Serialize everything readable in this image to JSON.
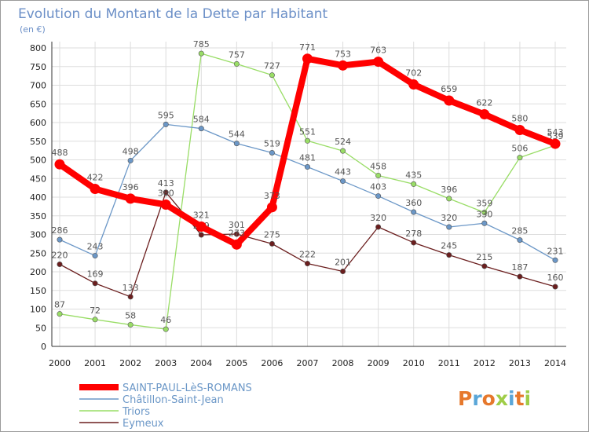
{
  "colors": {
    "saint_paul": "#ff0000",
    "chatillon": "#6b97c7",
    "triors": "#99dd66",
    "eymeux": "#6b1e1e",
    "grid": "#dddddd",
    "title": "#6b8fc7"
  },
  "logo": {
    "text": "Proxiti"
  },
  "chart_data": {
    "type": "line",
    "title": "Evolution du Montant de la Dette par Habitant",
    "subtitle": "(en €)",
    "xlabel": "",
    "ylabel": "",
    "ylim": [
      0,
      800
    ],
    "ytick_step": 50,
    "grid": true,
    "legend_position": "bottom-left",
    "x": [
      "2000",
      "2001",
      "2002",
      "2003",
      "2004",
      "2005",
      "2006",
      "2007",
      "2008",
      "2009",
      "2010",
      "2011",
      "2012",
      "2013",
      "2014"
    ],
    "series": [
      {
        "name": "SAINT-PAUL-LèS-ROMANS",
        "color_key": "saint_paul",
        "values": [
          488,
          422,
          396,
          380,
          321,
          273,
          373,
          771,
          753,
          763,
          702,
          659,
          622,
          580,
          543
        ],
        "labels": [
          "488",
          "422",
          "396",
          "380",
          "321",
          "273",
          "373",
          "771",
          "753",
          "763",
          "702",
          "659",
          "622",
          "580",
          "543"
        ]
      },
      {
        "name": "Châtillon-Saint-Jean",
        "color_key": "chatillon",
        "values": [
          286,
          243,
          498,
          595,
          584,
          544,
          519,
          481,
          443,
          403,
          360,
          320,
          330,
          285,
          231
        ],
        "labels": [
          "286",
          "243",
          "498",
          "595",
          "584",
          "544",
          "519",
          "481",
          "443",
          "403",
          "360",
          "320",
          "330",
          "285",
          "231"
        ]
      },
      {
        "name": "Triors",
        "color_key": "triors",
        "values": [
          87,
          72,
          58,
          46,
          785,
          757,
          727,
          551,
          524,
          458,
          435,
          396,
          359,
          506,
          539
        ],
        "labels": [
          "87",
          "72",
          "58",
          "46",
          "785",
          "757",
          "727",
          "551",
          "524",
          "458",
          "435",
          "396",
          "359",
          "506",
          "539"
        ]
      },
      {
        "name": "Eymeux",
        "color_key": "eymeux",
        "values": [
          220,
          169,
          133,
          413,
          299,
          301,
          275,
          222,
          201,
          320,
          278,
          245,
          215,
          187,
          160
        ],
        "labels": [
          "220",
          "169",
          "133",
          "413",
          "299",
          "301",
          "275",
          "222",
          "201",
          "320",
          "278",
          "245",
          "215",
          "187",
          "160"
        ]
      }
    ]
  }
}
